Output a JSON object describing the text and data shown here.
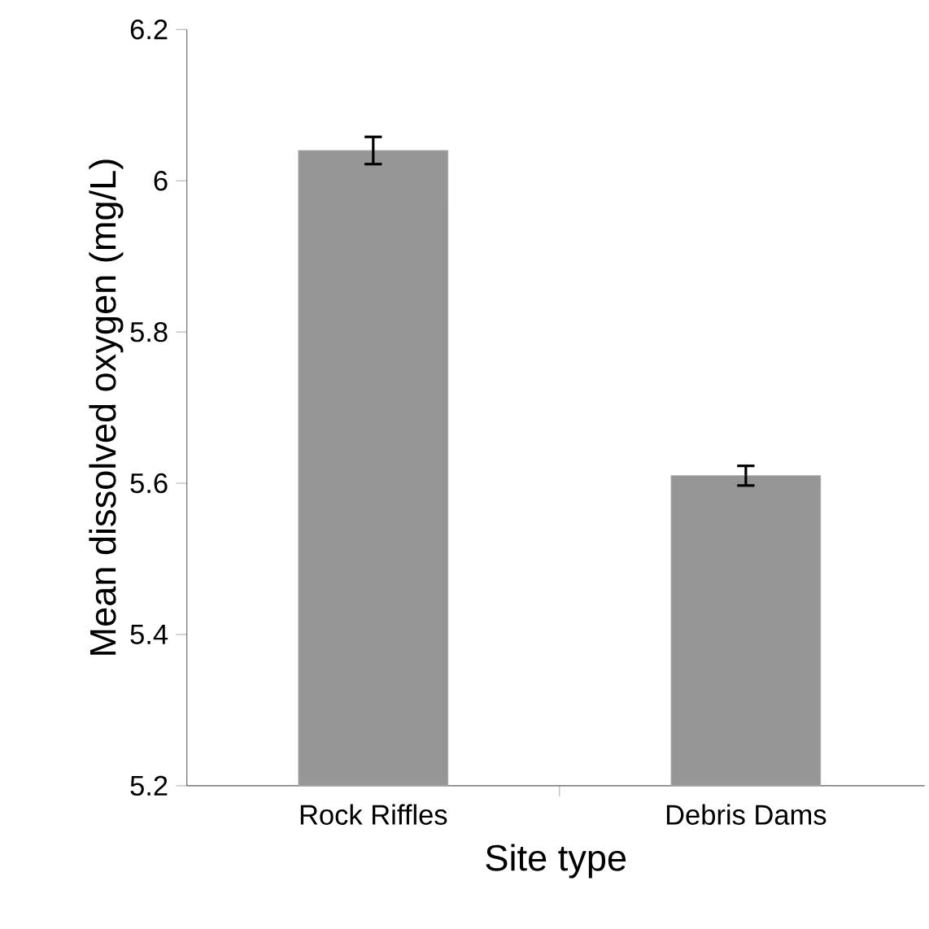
{
  "chart_data": {
    "type": "bar",
    "xlabel": "Site type",
    "ylabel": "Mean dissolved oxygen  (mg/L)",
    "categories": [
      "Rock Riffles",
      "Debris Dams"
    ],
    "values": [
      6.04,
      5.61
    ],
    "errors": [
      0.018,
      0.013
    ],
    "color": "#969696",
    "ylim": [
      5.2,
      6.2
    ],
    "yticks": [
      5.2,
      5.4,
      5.6,
      5.8,
      6,
      6.2
    ],
    "grid": false
  }
}
